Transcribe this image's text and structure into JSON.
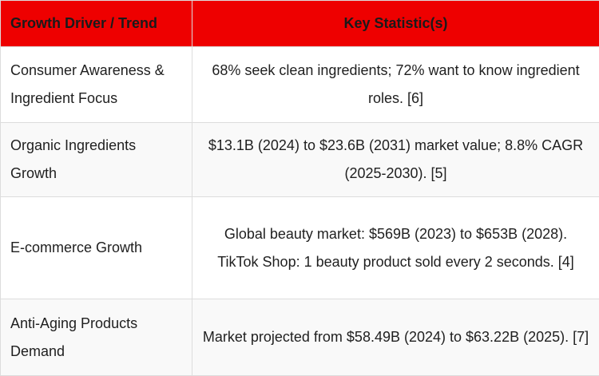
{
  "table": {
    "headers": [
      "Growth Driver / Trend",
      "Key Statistic(s)"
    ],
    "rows": [
      {
        "driver": "Consumer Awareness & Ingredient Focus",
        "stat": "68% seek clean ingredients; 72% want to know ingredient roles. [6]"
      },
      {
        "driver": "Organic Ingredients Growth",
        "stat": "$13.1B (2024) to $23.6B (2031) market value; 8.8% CAGR (2025-2030). [5]"
      },
      {
        "driver": "E-commerce Growth",
        "stat": "Global beauty market: $569B (2023) to $653B (2028). TikTok Shop: 1 beauty product sold every 2 seconds. [4]"
      },
      {
        "driver": "Anti-Aging Products Demand",
        "stat": "Market projected from $58.49B (2024) to $63.22B (2025). [7]"
      }
    ]
  },
  "colors": {
    "header_bg": "#ee0000",
    "stripe_bg": "#f9f9f9",
    "border": "#dddddd"
  }
}
